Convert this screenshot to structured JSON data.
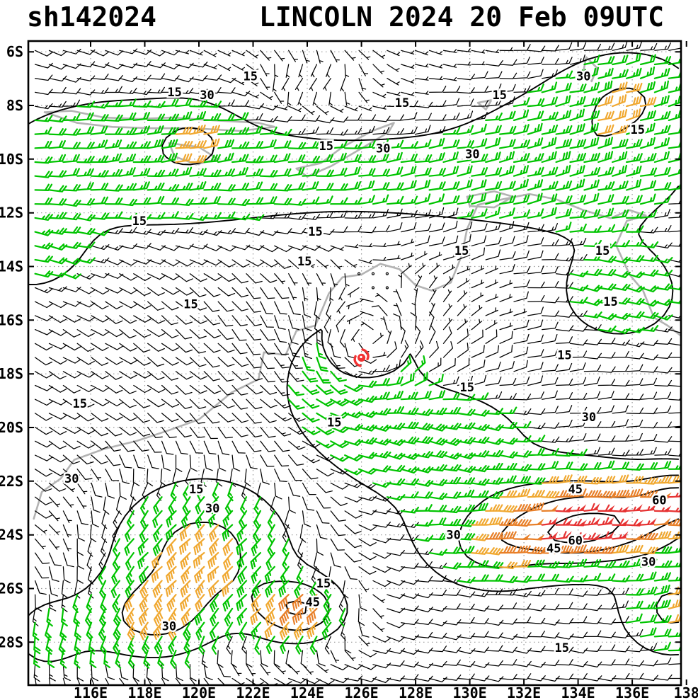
{
  "header": {
    "storm_id": "sh142024",
    "title": "LINCOLN 2024 20 Feb 09UTC"
  },
  "chart_data": {
    "type": "heatmap",
    "subtype": "wind_barb_isotach_analysis_map",
    "title": "LINCOLN 2024 20 Feb 09UTC",
    "storm_id": "sh142024",
    "storm": {
      "name": "LINCOLN",
      "center_lon": 126.0,
      "center_lat": -17.4,
      "symbol_color": "#f23333"
    },
    "axes": {
      "lon_min": 113.7,
      "lon_max": 137.8,
      "lat_min": -29.6,
      "lat_max": -5.6,
      "lon_ticks": [
        {
          "value": 116,
          "label": "116E"
        },
        {
          "value": 118,
          "label": "118E"
        },
        {
          "value": 120,
          "label": "120E"
        },
        {
          "value": 122,
          "label": "122E"
        },
        {
          "value": 124,
          "label": "124E"
        },
        {
          "value": 126,
          "label": "126E"
        },
        {
          "value": 128,
          "label": "128E"
        },
        {
          "value": 130,
          "label": "130E"
        },
        {
          "value": 132,
          "label": "132E"
        },
        {
          "value": 134,
          "label": "134E"
        },
        {
          "value": 136,
          "label": "136E"
        },
        {
          "value": 138,
          "label": "138"
        }
      ],
      "lat_ticks": [
        {
          "value": -6,
          "label": "6S"
        },
        {
          "value": -8,
          "label": "8S"
        },
        {
          "value": -10,
          "label": "10S"
        },
        {
          "value": -12,
          "label": "12S"
        },
        {
          "value": -14,
          "label": "14S"
        },
        {
          "value": -16,
          "label": "16S"
        },
        {
          "value": -18,
          "label": "18S"
        },
        {
          "value": -20,
          "label": "20S"
        },
        {
          "value": -22,
          "label": "22S"
        },
        {
          "value": -24,
          "label": "24S"
        },
        {
          "value": -26,
          "label": "26S"
        },
        {
          "value": -28,
          "label": "28S"
        }
      ],
      "grid": "dotted"
    },
    "isotach_levels_kt": [
      15,
      30,
      45,
      60
    ],
    "speed_colors": [
      {
        "max_kt": 15,
        "color": "#000000"
      },
      {
        "max_kt": 30,
        "color": "#00c400"
      },
      {
        "max_kt": 40,
        "color": "#f0a830"
      },
      {
        "max_kt": 52,
        "color": "#e87f28"
      },
      {
        "max_kt": 999,
        "color": "#e63232"
      }
    ],
    "contour_labels": [
      {
        "t": "15",
        "lon": 121.9,
        "lat": -6.9
      },
      {
        "t": "15",
        "lon": 119.1,
        "lat": -7.5
      },
      {
        "t": "30",
        "lon": 120.3,
        "lat": -7.6
      },
      {
        "t": "15",
        "lon": 127.5,
        "lat": -7.9
      },
      {
        "t": "15",
        "lon": 131.1,
        "lat": -7.6
      },
      {
        "t": "30",
        "lon": 134.2,
        "lat": -6.9
      },
      {
        "t": "15",
        "lon": 124.7,
        "lat": -9.5
      },
      {
        "t": "30",
        "lon": 126.8,
        "lat": -9.6
      },
      {
        "t": "30",
        "lon": 130.1,
        "lat": -9.8
      },
      {
        "t": "15",
        "lon": 136.2,
        "lat": -8.9
      },
      {
        "t": "15",
        "lon": 117.8,
        "lat": -12.3
      },
      {
        "t": "15",
        "lon": 124.3,
        "lat": -12.7
      },
      {
        "t": "15",
        "lon": 123.9,
        "lat": -13.8
      },
      {
        "t": "15",
        "lon": 129.7,
        "lat": -13.4
      },
      {
        "t": "15",
        "lon": 134.9,
        "lat": -13.4
      },
      {
        "t": "15",
        "lon": 135.2,
        "lat": -15.3
      },
      {
        "t": "15",
        "lon": 119.7,
        "lat": -15.4
      },
      {
        "t": "15",
        "lon": 133.5,
        "lat": -17.3
      },
      {
        "t": "15",
        "lon": 129.9,
        "lat": -18.5
      },
      {
        "t": "15",
        "lon": 115.6,
        "lat": -19.1
      },
      {
        "t": "15",
        "lon": 125.0,
        "lat": -19.8
      },
      {
        "t": "30",
        "lon": 134.4,
        "lat": -19.6
      },
      {
        "t": "30",
        "lon": 115.3,
        "lat": -21.9
      },
      {
        "t": "15",
        "lon": 119.9,
        "lat": -22.3
      },
      {
        "t": "30",
        "lon": 120.5,
        "lat": -23.0
      },
      {
        "t": "45",
        "lon": 133.9,
        "lat": -22.3
      },
      {
        "t": "60",
        "lon": 137.0,
        "lat": -22.7
      },
      {
        "t": "30",
        "lon": 129.4,
        "lat": -24.0
      },
      {
        "t": "45",
        "lon": 133.1,
        "lat": -24.5
      },
      {
        "t": "60",
        "lon": 133.9,
        "lat": -24.2
      },
      {
        "t": "30",
        "lon": 136.6,
        "lat": -25.0
      },
      {
        "t": "15",
        "lon": 124.6,
        "lat": -25.8
      },
      {
        "t": "45",
        "lon": 124.2,
        "lat": -26.5
      },
      {
        "t": "30",
        "lon": 118.9,
        "lat": -27.4
      },
      {
        "t": "15",
        "lon": 133.4,
        "lat": -28.2
      }
    ],
    "coastlines": [
      [
        [
          137.95,
          -16.7
        ],
        [
          137.3,
          -16.2
        ],
        [
          136.8,
          -15.9
        ],
        [
          136.4,
          -14.9
        ],
        [
          135.9,
          -14.3
        ],
        [
          135.4,
          -13.2
        ],
        [
          135.8,
          -12.3
        ],
        [
          136.5,
          -12.1
        ],
        [
          135.9,
          -11.9
        ],
        [
          135.2,
          -12.2
        ],
        [
          134.2,
          -11.9
        ],
        [
          133.2,
          -11.5
        ],
        [
          132.2,
          -11.3
        ],
        [
          131.2,
          -11.5
        ],
        [
          130.3,
          -11.7
        ],
        [
          129.9,
          -12.6
        ],
        [
          129.7,
          -13.6
        ],
        [
          129.3,
          -14.6
        ],
        [
          128.6,
          -14.9
        ],
        [
          128.0,
          -14.7
        ],
        [
          127.4,
          -14.1
        ],
        [
          126.7,
          -13.9
        ],
        [
          126.0,
          -14.3
        ],
        [
          125.3,
          -14.4
        ],
        [
          124.8,
          -15.0
        ],
        [
          124.3,
          -16.2
        ],
        [
          123.6,
          -16.4
        ],
        [
          123.2,
          -17.3
        ],
        [
          122.4,
          -17.2
        ],
        [
          122.2,
          -18.2
        ],
        [
          121.2,
          -18.7
        ],
        [
          120.0,
          -19.7
        ],
        [
          118.9,
          -20.1
        ],
        [
          117.7,
          -20.5
        ],
        [
          116.5,
          -20.8
        ],
        [
          115.4,
          -21.2
        ],
        [
          114.9,
          -21.9
        ],
        [
          114.2,
          -22.4
        ],
        [
          113.9,
          -23.4
        ]
      ],
      [
        [
          123.6,
          -10.35
        ],
        [
          124.5,
          -10.15
        ],
        [
          125.3,
          -9.55
        ],
        [
          126.4,
          -8.95
        ],
        [
          127.2,
          -8.65
        ],
        [
          127.0,
          -9.0
        ],
        [
          126.0,
          -9.6
        ],
        [
          124.9,
          -10.25
        ],
        [
          124.0,
          -10.65
        ],
        [
          123.6,
          -10.35
        ]
      ],
      [
        [
          114.3,
          -8.25
        ],
        [
          115.3,
          -8.2
        ],
        [
          116.5,
          -8.45
        ],
        [
          117.8,
          -8.5
        ],
        [
          119.0,
          -8.45
        ],
        [
          120.5,
          -8.55
        ],
        [
          122.2,
          -8.65
        ],
        [
          122.8,
          -8.8
        ],
        [
          121.5,
          -8.95
        ],
        [
          119.8,
          -8.85
        ],
        [
          118.3,
          -8.85
        ],
        [
          116.8,
          -8.8
        ],
        [
          115.5,
          -8.65
        ],
        [
          114.3,
          -8.25
        ]
      ],
      [
        [
          118.9,
          -9.4
        ],
        [
          120.0,
          -9.55
        ],
        [
          120.7,
          -10.0
        ],
        [
          119.9,
          -10.2
        ],
        [
          119.1,
          -9.9
        ],
        [
          118.9,
          -9.4
        ]
      ],
      [
        [
          129.9,
          -11.4
        ],
        [
          130.9,
          -11.2
        ],
        [
          131.6,
          -11.4
        ],
        [
          130.9,
          -11.8
        ],
        [
          130.0,
          -11.75
        ],
        [
          129.9,
          -11.4
        ]
      ],
      [
        [
          134.3,
          -6.2
        ],
        [
          134.7,
          -6.6
        ],
        [
          134.5,
          -7.1
        ],
        [
          134.2,
          -6.7
        ],
        [
          134.3,
          -6.2
        ]
      ],
      [
        [
          130.3,
          -7.9
        ],
        [
          130.8,
          -7.8
        ],
        [
          130.6,
          -8.15
        ],
        [
          130.3,
          -7.9
        ]
      ]
    ],
    "wind_field_model": {
      "barb_step_deg": 0.52,
      "base": {
        "u": -7,
        "v": 2
      },
      "vortex": {
        "lon": 126.0,
        "lat": -17.4,
        "vmax": 16,
        "rmax": 1.8,
        "decay": 1.1
      },
      "components": [
        {
          "name": "trades-west",
          "lon": 117.5,
          "lat": -10.0,
          "sx": 5.5,
          "sy": 2.6,
          "u": -18,
          "v": -5
        },
        {
          "name": "trades-central",
          "lon": 127.0,
          "lat": -10.8,
          "sx": 7.0,
          "sy": 2.4,
          "u": -15,
          "v": -4
        },
        {
          "name": "trades-east",
          "lon": 134.5,
          "lat": -9.5,
          "sx": 4.0,
          "sy": 2.8,
          "u": -18,
          "v": -6
        },
        {
          "name": "jet-top-right",
          "lon": 136.0,
          "lat": -7.5,
          "sx": 2.2,
          "sy": 1.5,
          "u": -14,
          "v": -6
        },
        {
          "name": "patch-top-left",
          "lon": 119.8,
          "lat": -9.2,
          "sx": 1.4,
          "sy": 1.1,
          "u": -11,
          "v": -3
        },
        {
          "name": "green-east-mid",
          "lon": 135.5,
          "lat": -15.0,
          "sx": 2.6,
          "sy": 2.0,
          "u": -14,
          "v": 6
        },
        {
          "name": "green-west-mid",
          "lon": 113.8,
          "lat": -13.2,
          "sx": 2.0,
          "sy": 1.8,
          "u": -14,
          "v": 2
        },
        {
          "name": "se-wrap",
          "lon": 128.7,
          "lat": -20.4,
          "sx": 3.0,
          "sy": 1.7,
          "u": -16,
          "v": 9
        },
        {
          "name": "sw-monsoon",
          "lon": 120.2,
          "lat": -24.6,
          "sx": 3.8,
          "sy": 3.0,
          "u": 34,
          "v": 20
        },
        {
          "name": "sw-core-45",
          "lon": 123.8,
          "lat": -26.8,
          "sx": 1.7,
          "sy": 1.2,
          "u": 34,
          "v": 26
        },
        {
          "name": "se-jet",
          "lon": 133.8,
          "lat": -23.4,
          "sx": 4.2,
          "sy": 1.8,
          "u": -36,
          "v": -2
        },
        {
          "name": "se-jet-core-east",
          "lon": 135.2,
          "lat": -23.6,
          "sx": 2.4,
          "sy": 1.1,
          "u": -20,
          "v": 0
        },
        {
          "name": "se-jet-core-west",
          "lon": 133.6,
          "lat": -24.2,
          "sx": 1.5,
          "sy": 0.65,
          "u": -14,
          "v": -2
        },
        {
          "name": "corner-bottom-right",
          "lon": 137.5,
          "lat": -26.8,
          "sx": 1.7,
          "sy": 1.5,
          "u": -24,
          "v": -6
        },
        {
          "name": "corner-bottom-left-green",
          "lon": 114.3,
          "lat": -27.8,
          "sx": 2.0,
          "sy": 2.0,
          "u": 10,
          "v": 14
        },
        {
          "name": "lull-top-center",
          "lon": 124.0,
          "lat": -7.2,
          "sx": 2.6,
          "sy": 1.4,
          "u": 10,
          "v": 2
        },
        {
          "name": "edge-right-60",
          "lon": 137.9,
          "lat": -22.6,
          "sx": 1.6,
          "sy": 1.0,
          "u": -30,
          "v": 0
        },
        {
          "name": "tongue-south-central",
          "lon": 130.8,
          "lat": -24.6,
          "sx": 1.8,
          "sy": 1.2,
          "u": -16,
          "v": 2
        },
        {
          "name": "sw-lower-orange",
          "lon": 118.2,
          "lat": -27.2,
          "sx": 2.2,
          "sy": 1.5,
          "u": 16,
          "v": 20
        }
      ]
    }
  }
}
